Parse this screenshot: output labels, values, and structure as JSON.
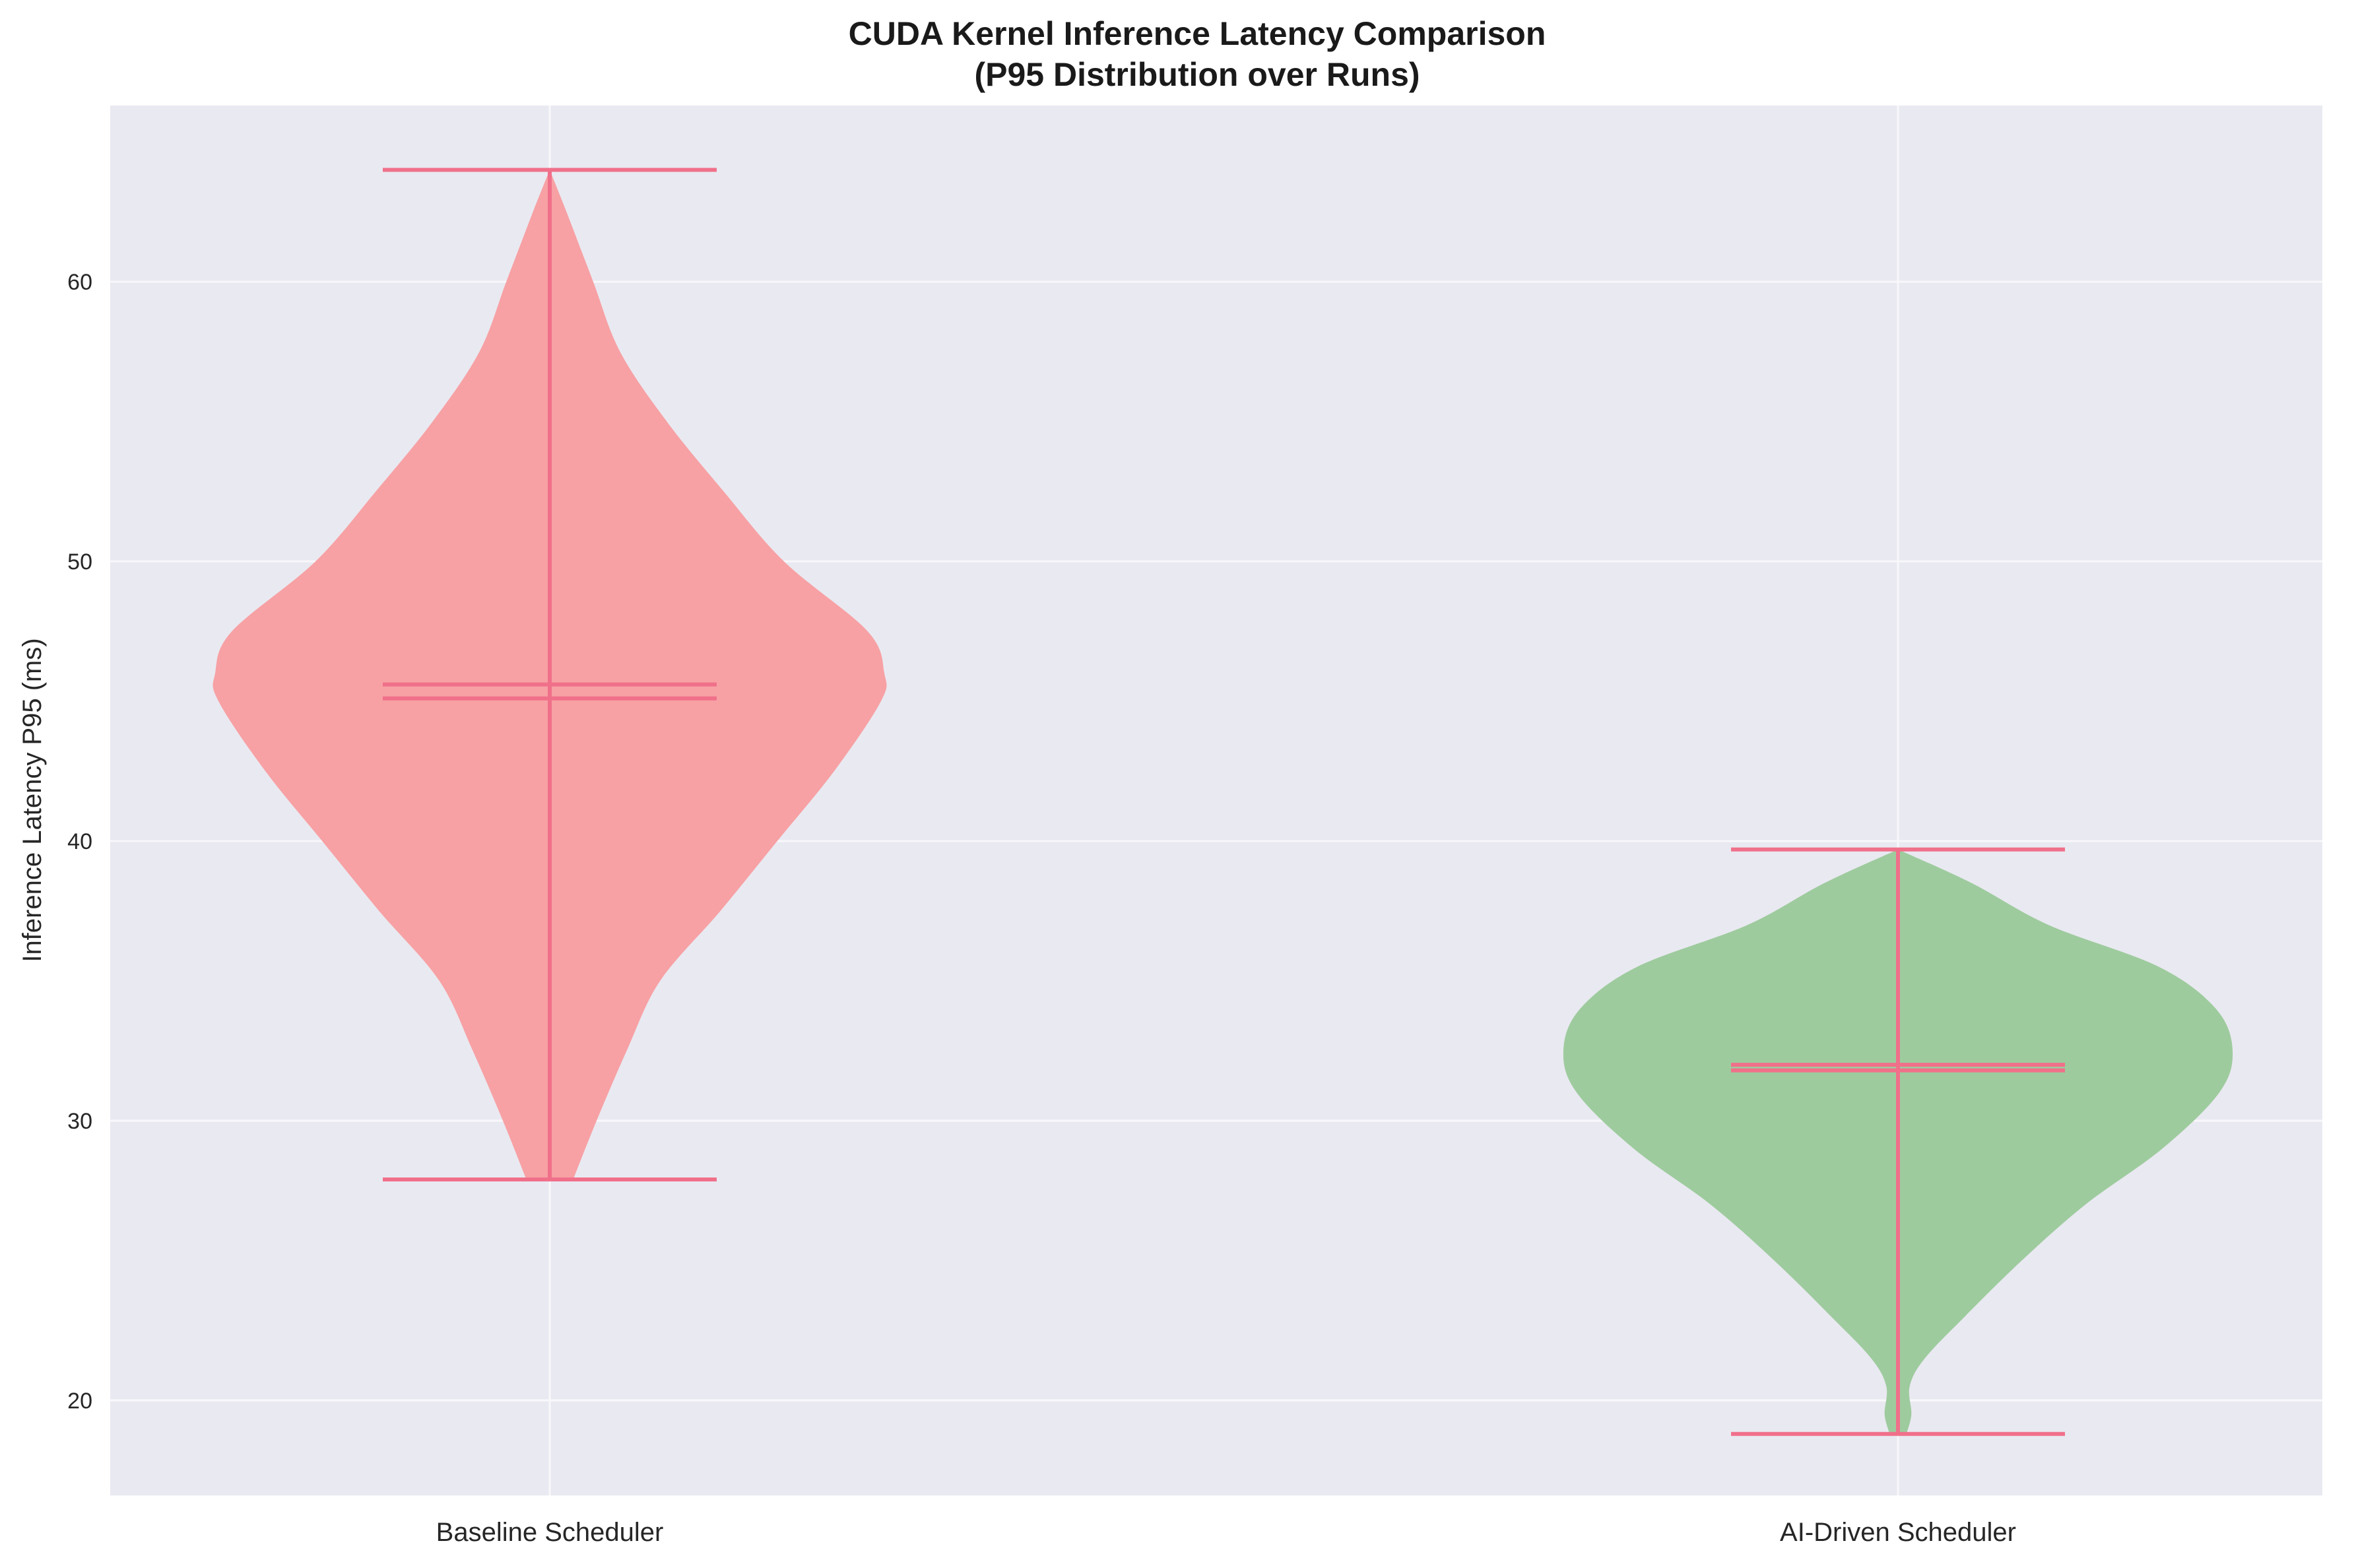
{
  "title_line1": "CUDA Kernel Inference Latency Comparison",
  "title_line2": "(P95 Distribution over Runs)",
  "colors": {
    "plot_background": "#e9e9f1",
    "grid": "#f8f8fb",
    "stat_lines": "#f0708a",
    "baseline_fill": "#f7a1a4",
    "ai_fill": "#9ecb9e"
  },
  "chart_data": {
    "type": "violin",
    "title": "CUDA Kernel Inference Latency Comparison\n(P95 Distribution over Runs)",
    "xlabel": "",
    "ylabel": "Inference Latency P95 (ms)",
    "ylim": [
      16.6,
      66.3
    ],
    "yticks": [
      20,
      30,
      40,
      50,
      60
    ],
    "categories": [
      "Baseline Scheduler",
      "AI-Driven Scheduler"
    ],
    "grid": true,
    "legend": "none",
    "series": [
      {
        "category": "Baseline Scheduler",
        "min": 27.9,
        "max": 64.0,
        "mean": 45.6,
        "median": 45.1,
        "density_profile": [
          [
            27.9,
            0.07
          ],
          [
            30.0,
            0.14
          ],
          [
            32.5,
            0.23
          ],
          [
            35.0,
            0.33
          ],
          [
            37.5,
            0.51
          ],
          [
            40.0,
            0.68
          ],
          [
            42.5,
            0.85
          ],
          [
            45.0,
            0.99
          ],
          [
            46.0,
            1.0
          ],
          [
            47.5,
            0.95
          ],
          [
            50.0,
            0.7
          ],
          [
            52.5,
            0.52
          ],
          [
            55.0,
            0.35
          ],
          [
            57.5,
            0.21
          ],
          [
            60.0,
            0.13
          ],
          [
            62.5,
            0.05
          ],
          [
            64.0,
            0.0
          ]
        ]
      },
      {
        "category": "AI-Driven Scheduler",
        "min": 18.8,
        "max": 39.7,
        "mean": 32.0,
        "median": 31.8,
        "density_profile": [
          [
            18.8,
            0.025
          ],
          [
            19.5,
            0.04
          ],
          [
            20.5,
            0.035
          ],
          [
            21.5,
            0.08
          ],
          [
            23.0,
            0.2
          ],
          [
            25.0,
            0.37
          ],
          [
            27.0,
            0.56
          ],
          [
            29.0,
            0.79
          ],
          [
            31.0,
            0.96
          ],
          [
            32.5,
            1.0
          ],
          [
            34.0,
            0.95
          ],
          [
            35.5,
            0.78
          ],
          [
            37.0,
            0.45
          ],
          [
            38.5,
            0.22
          ],
          [
            39.7,
            0.0
          ]
        ]
      }
    ]
  }
}
